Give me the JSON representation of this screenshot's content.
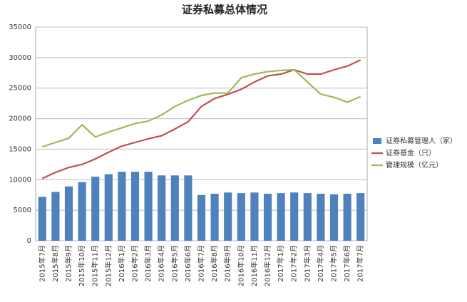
{
  "chart_data": {
    "type": "bar",
    "title": "证券私募总体情况",
    "categories": [
      "2015年7月",
      "2015年8月",
      "2015年9月",
      "2015年10月",
      "2015年11月",
      "2015年12月",
      "2016年1月",
      "2016年2月",
      "2016年3月",
      "2016年4月",
      "2016年5月",
      "2016年6月",
      "2016年7月",
      "2016年8月",
      "2016年9月",
      "2016年10月",
      "2016年11月",
      "2016年12月",
      "2017年1月",
      "2017年2月",
      "2017年3月",
      "2017年4月",
      "2017年5月",
      "2017年6月",
      "2017年7月"
    ],
    "series": [
      {
        "name": "证券私募管理人（家）",
        "type": "bar",
        "color": "#4f81bd",
        "values": [
          7200,
          8000,
          8900,
          9600,
          10500,
          10900,
          11300,
          11300,
          11300,
          10700,
          10700,
          10700,
          7500,
          7700,
          7900,
          7800,
          7900,
          7700,
          7800,
          7900,
          7800,
          7700,
          7600,
          7700,
          7800
        ]
      },
      {
        "name": "证券基金（只）",
        "type": "line",
        "color": "#c0504d",
        "values": [
          10200,
          11200,
          12000,
          12500,
          13400,
          14500,
          15500,
          16100,
          16700,
          17200,
          18300,
          19500,
          22000,
          23300,
          24000,
          24800,
          26000,
          27000,
          27300,
          28000,
          27300,
          27300,
          28000,
          28600,
          29600
        ]
      },
      {
        "name": "管理规模（亿元）",
        "type": "line",
        "color": "#9bbb59",
        "values": [
          15400,
          16100,
          16800,
          19000,
          17000,
          17800,
          18500,
          19200,
          19600,
          20600,
          22000,
          23000,
          23800,
          24200,
          24200,
          26700,
          27300,
          27700,
          27900,
          28000,
          26000,
          24000,
          23500,
          22700,
          23600
        ]
      }
    ],
    "ylim": [
      0,
      35000
    ],
    "yticks": [
      0,
      5000,
      10000,
      15000,
      20000,
      25000,
      30000,
      35000
    ],
    "grid": true
  }
}
